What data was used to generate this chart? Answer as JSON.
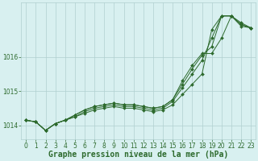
{
  "x": [
    0,
    1,
    2,
    3,
    4,
    5,
    6,
    7,
    8,
    9,
    10,
    11,
    12,
    13,
    14,
    15,
    16,
    17,
    18,
    19,
    20,
    21,
    22,
    23
  ],
  "series": [
    [
      1014.15,
      1014.1,
      1013.85,
      1014.05,
      1014.15,
      1014.25,
      1014.35,
      1014.45,
      1014.5,
      1014.55,
      1014.5,
      1014.5,
      1014.45,
      1014.4,
      1014.45,
      1014.6,
      1014.9,
      1015.2,
      1015.5,
      1016.8,
      1017.2,
      1017.2,
      1017.0,
      1016.85
    ],
    [
      1014.15,
      1014.1,
      1013.85,
      1014.05,
      1014.15,
      1014.25,
      1014.4,
      1014.5,
      1014.55,
      1014.6,
      1014.55,
      1014.55,
      1014.5,
      1014.45,
      1014.5,
      1014.7,
      1015.1,
      1015.5,
      1015.9,
      1016.55,
      1017.2,
      1017.2,
      1016.9,
      1016.85
    ],
    [
      1014.15,
      1014.1,
      1013.85,
      1014.05,
      1014.15,
      1014.3,
      1014.45,
      1014.55,
      1014.6,
      1014.65,
      1014.6,
      1014.6,
      1014.55,
      1014.5,
      1014.55,
      1014.75,
      1015.2,
      1015.65,
      1016.05,
      1016.3,
      1017.2,
      1017.2,
      1016.95,
      1016.85
    ],
    [
      1014.15,
      1014.1,
      1013.85,
      1014.05,
      1014.15,
      1014.3,
      1014.45,
      1014.55,
      1014.6,
      1014.65,
      1014.6,
      1014.6,
      1014.55,
      1014.5,
      1014.55,
      1014.75,
      1015.3,
      1015.75,
      1016.1,
      1016.1,
      1016.55,
      1017.2,
      1016.95,
      1016.85
    ]
  ],
  "line_color": "#2d6a2d",
  "marker_color": "#2d6a2d",
  "bg_color": "#d8f0f0",
  "grid_color": "#b0d0d0",
  "axis_color": "#2d6a2d",
  "ylabel_ticks": [
    1014,
    1015,
    1016
  ],
  "ytick_labels": [
    "1014",
    "1015",
    "1016"
  ],
  "xlabel": "Graphe pression niveau de la mer (hPa)",
  "xlim": [
    -0.5,
    23.5
  ],
  "ylim": [
    1013.6,
    1017.6
  ],
  "xlabel_fontsize": 7,
  "tick_fontsize": 5.5
}
